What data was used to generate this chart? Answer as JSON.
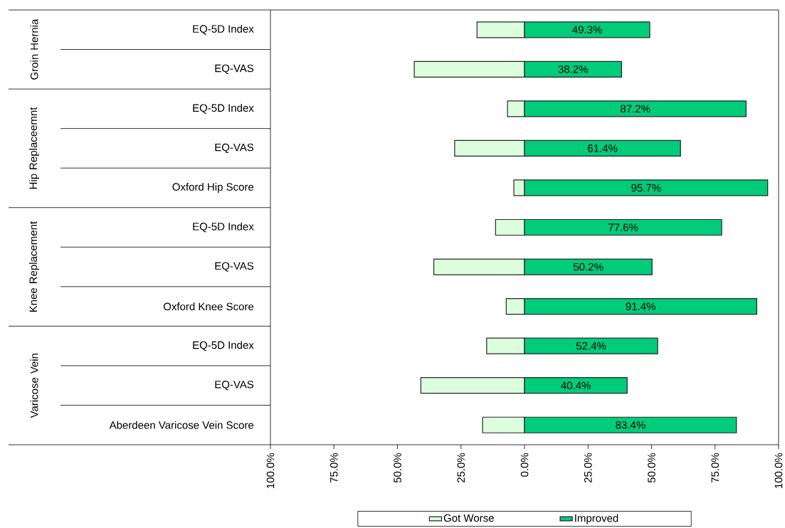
{
  "chart_data": {
    "type": "bar",
    "orientation": "horizontal",
    "stacked": true,
    "categories": [
      "EQ-5D Index",
      "EQ-VAS",
      "EQ-5D Index",
      "EQ-VAS",
      "Oxford Hip Score",
      "EQ-5D Index",
      "EQ-VAS",
      "Oxford Knee Score",
      "EQ-5D Index",
      "EQ-VAS",
      "Aberdeen Varicose Vein Score"
    ],
    "annotations": [
      "Groin Hernia",
      "Hip Replaceemnt",
      "Knee Replacement",
      "Varicose Vein"
    ],
    "series": [
      {
        "name": "Got Worse",
        "color": "#ddfedd",
        "values": [
          -18.7,
          -43.4,
          -6.7,
          -27.5,
          -4.2,
          -11.4,
          -35.7,
          -7.2,
          -14.9,
          -40.8,
          -16.5
        ]
      },
      {
        "name": "Improved",
        "color": "#00cc7a",
        "values": [
          49.3,
          38.2,
          87.2,
          61.4,
          95.7,
          77.6,
          50.2,
          91.4,
          52.4,
          40.4,
          83.4
        ],
        "value_labels": [
          "49.3%",
          "38.2%",
          "87.2%",
          "61.4%",
          "95.7%",
          "77.6%",
          "50.2%",
          "91.4%",
          "52.4%",
          "40.4%",
          "83.4%"
        ]
      }
    ],
    "xlim": [
      -100,
      100
    ],
    "xticks": [
      {
        "value": -100,
        "label": "100.0%"
      },
      {
        "value": -75,
        "label": "75.0%"
      },
      {
        "value": -50,
        "label": "50.0%"
      },
      {
        "value": -25,
        "label": "25.0%"
      },
      {
        "value": 0,
        "label": "0.0%"
      },
      {
        "value": 25,
        "label": "25.0%"
      },
      {
        "value": 50,
        "label": "50.0%"
      },
      {
        "value": 75,
        "label": "75.0%"
      },
      {
        "value": 100,
        "label": "100.0%"
      }
    ],
    "legend": "bottom"
  }
}
